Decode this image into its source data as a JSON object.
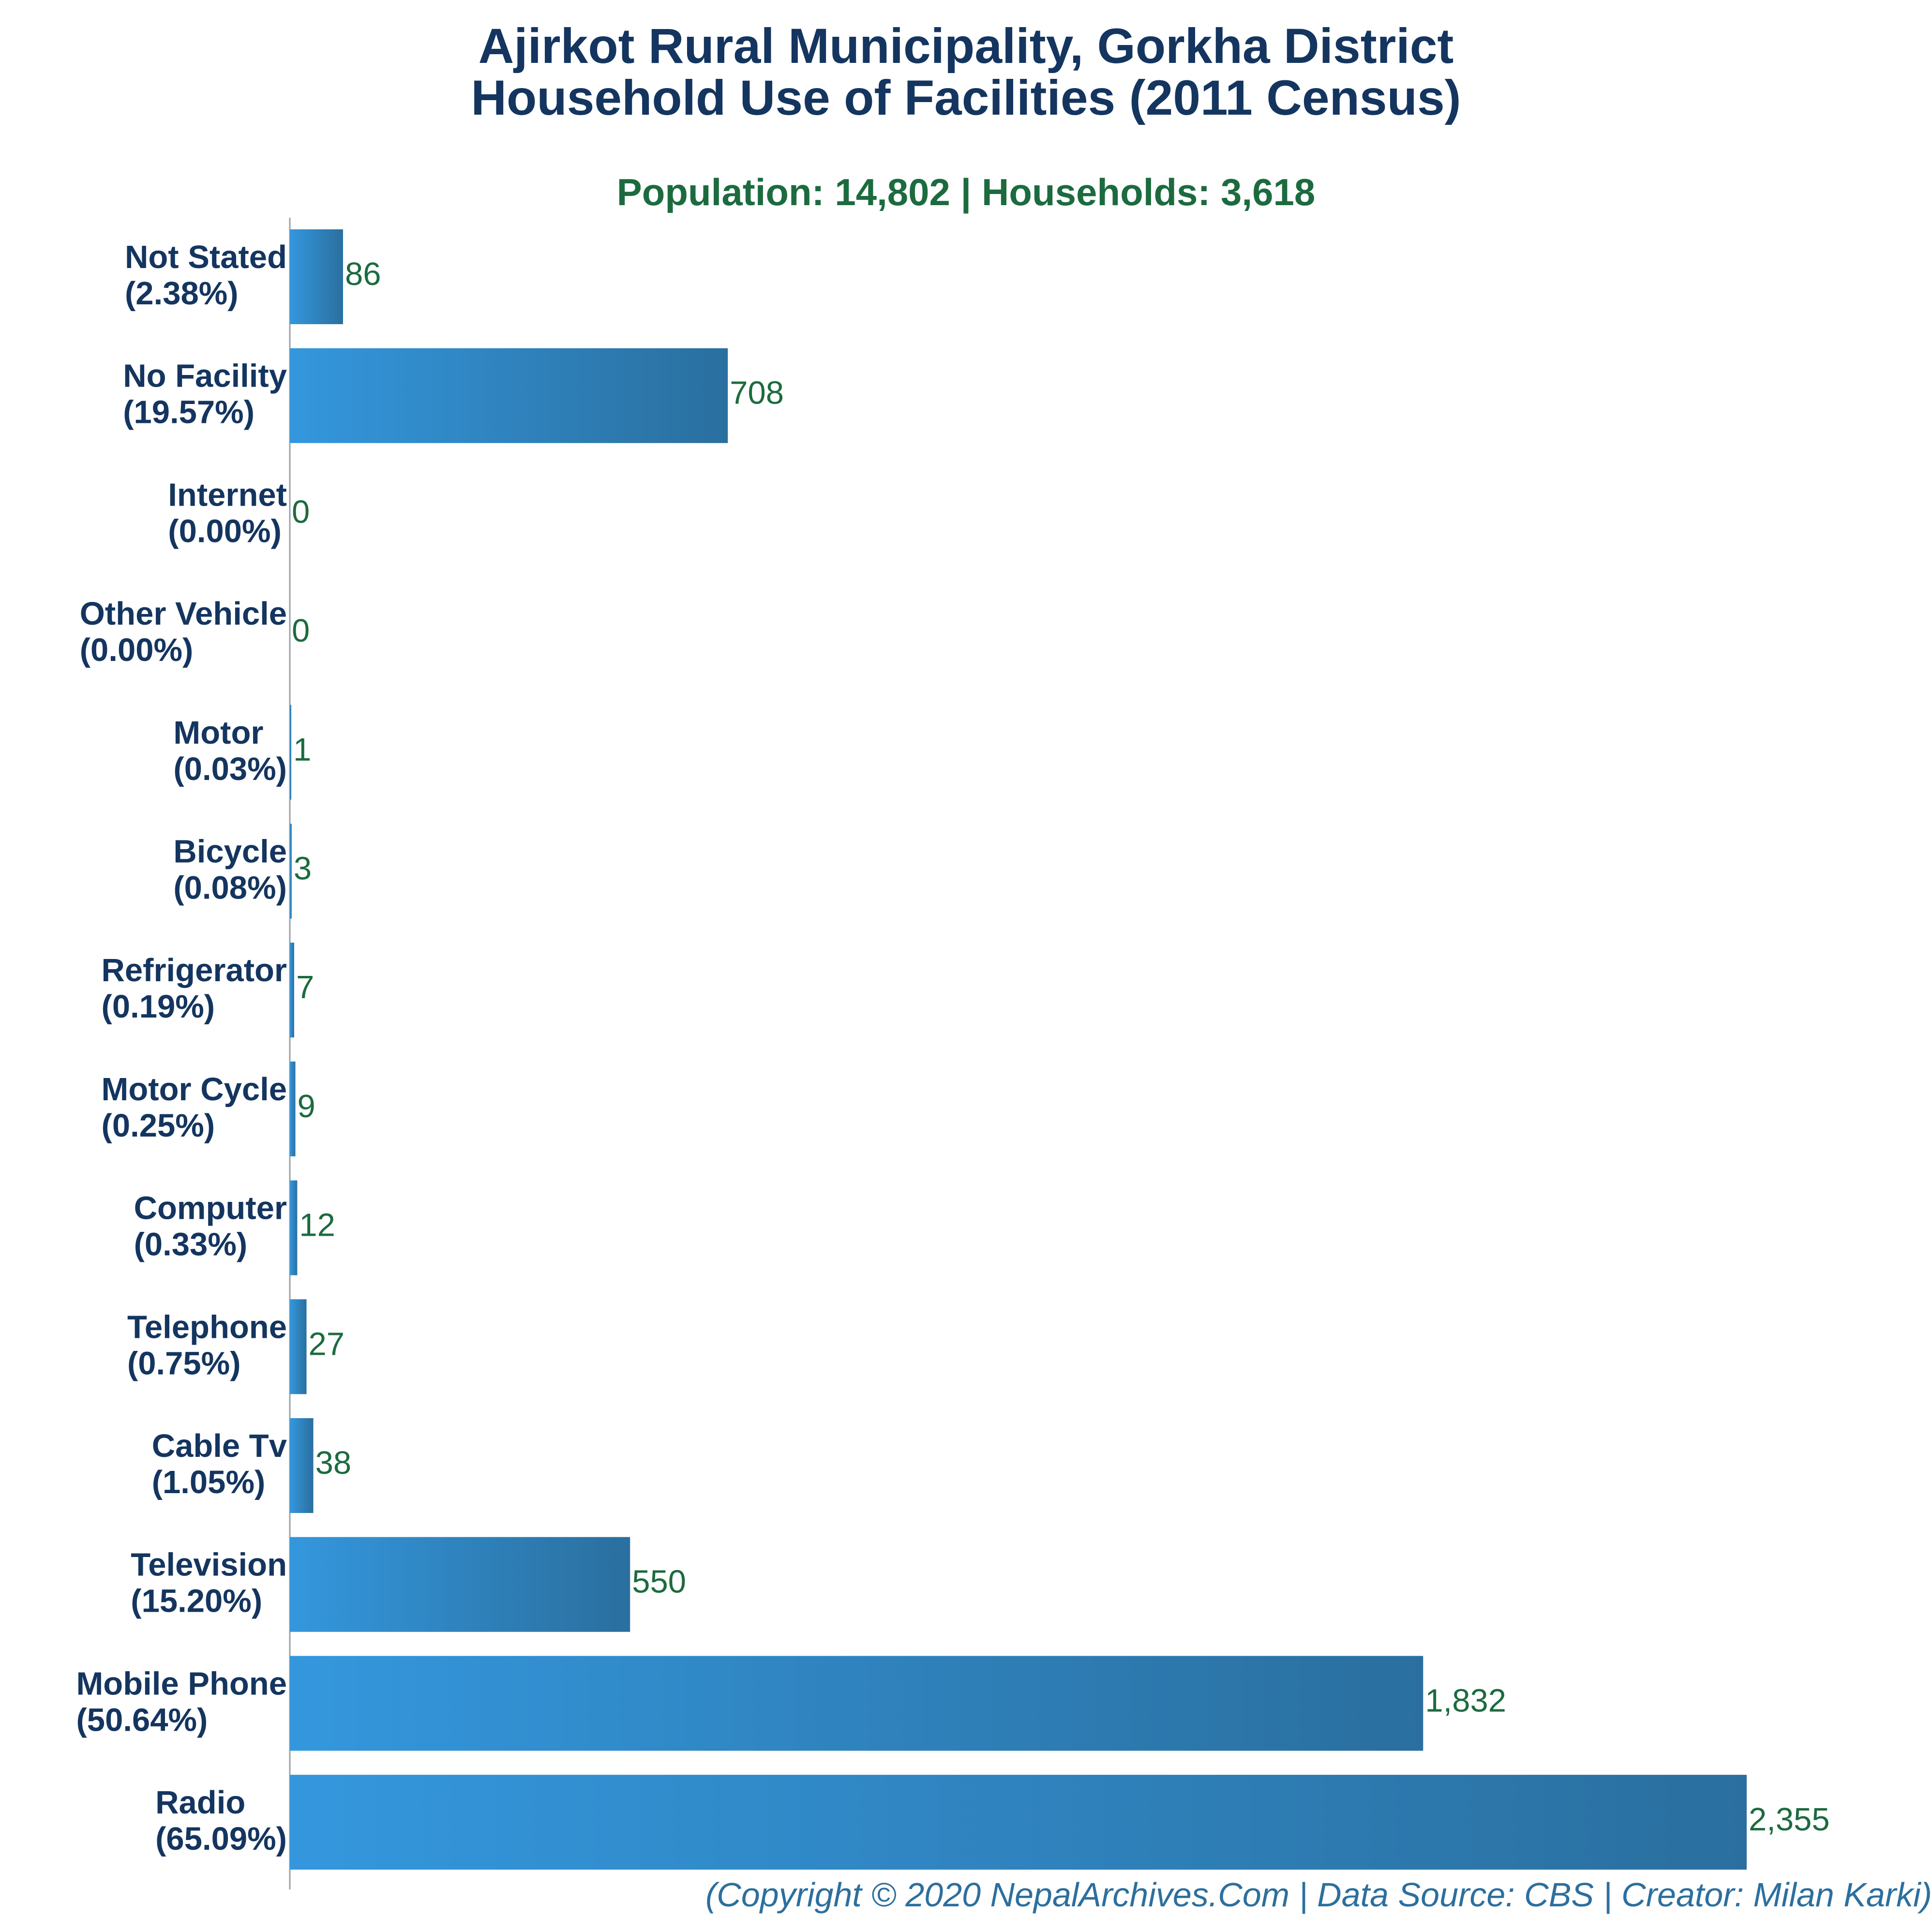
{
  "title_line1": "Ajirkot Rural Municipality, Gorkha District",
  "title_line2": "Household Use of Facilities (2011 Census)",
  "subtitle": "Population: 14,802 | Households: 3,618",
  "footer": "(Copyright © 2020 NepalArchives.Com | Data Source: CBS | Creator: Milan Karki)",
  "colors": {
    "title": "#14355f",
    "subtitle": "#1c6b3f",
    "value_label": "#1c6b3f",
    "bar_light": "#3497dd",
    "bar_dark": "#2a6f9f",
    "footer": "#2c6f9e",
    "axis": "#9aa3ab"
  },
  "chart_data": {
    "type": "bar",
    "orientation": "horizontal",
    "title": "Ajirkot Rural Municipality, Gorkha District Household Use of Facilities (2011 Census)",
    "subtitle": "Population: 14,802 | Households: 3,618",
    "xlabel": "",
    "ylabel": "",
    "xlim": [
      0,
      2355
    ],
    "grid": false,
    "categories": [
      "Not Stated",
      "No Facility",
      "Internet",
      "Other Vehicle",
      "Motor",
      "Bicycle",
      "Refrigerator",
      "Motor Cycle",
      "Computer",
      "Telephone",
      "Cable Tv",
      "Television",
      "Mobile Phone",
      "Radio"
    ],
    "percent_labels": [
      "(2.38%)",
      "(19.57%)",
      "(0.00%)",
      "(0.00%)",
      "(0.03%)",
      "(0.08%)",
      "(0.19%)",
      "(0.25%)",
      "(0.33%)",
      "(0.75%)",
      "(1.05%)",
      "(15.20%)",
      "(50.64%)",
      "(65.09%)"
    ],
    "values": [
      86,
      708,
      0,
      0,
      1,
      3,
      7,
      9,
      12,
      27,
      38,
      550,
      1832,
      2355
    ],
    "value_labels": [
      "86",
      "708",
      "0",
      "0",
      "1",
      "3",
      "7",
      "9",
      "12",
      "27",
      "38",
      "550",
      "1,832",
      "2,355"
    ]
  }
}
